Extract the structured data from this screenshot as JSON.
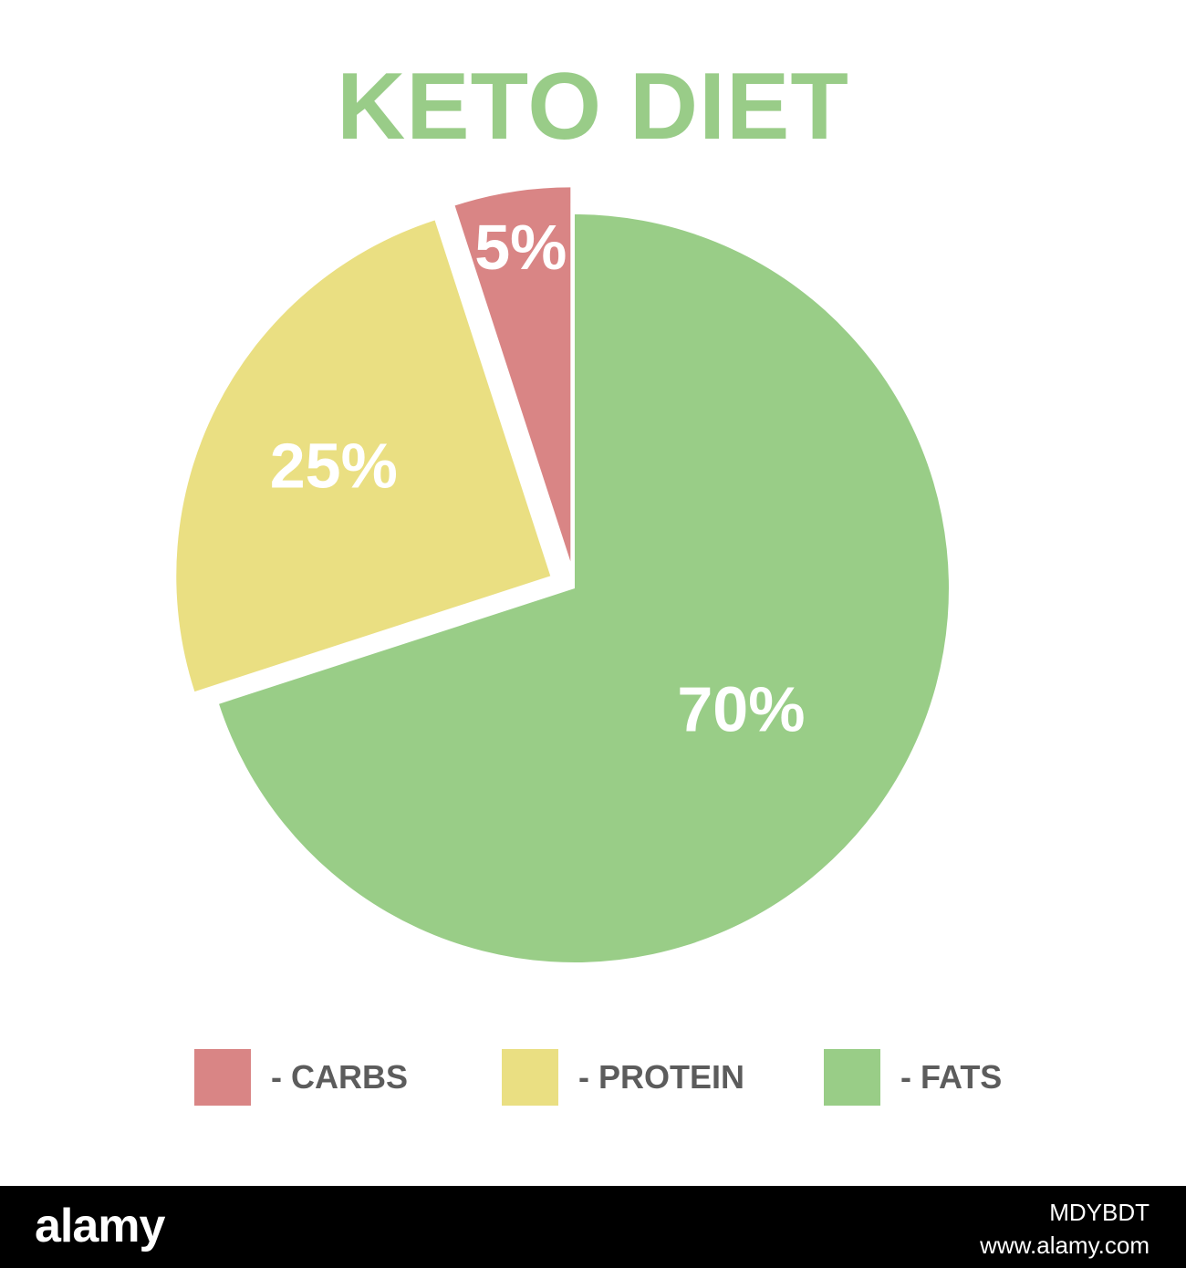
{
  "title": "KETO DIET",
  "chart_data": {
    "type": "pie",
    "categories": [
      "- CARBS",
      "- PROTEIN",
      "- FATS"
    ],
    "values": [
      5,
      25,
      70
    ],
    "labels": [
      "5%",
      "25%",
      "70%"
    ],
    "colors": [
      "#d98585",
      "#eadf82",
      "#99cd87"
    ],
    "start_angle_deg": 0,
    "direction": "clockwise",
    "exploded": [
      "carbs",
      "protein"
    ],
    "legend_placement": "bottom"
  },
  "colors": {
    "title": "#99cc88",
    "legend_text": "#5c5c5c",
    "slice_label": "#ffffff",
    "footer": "#000000"
  },
  "footer": {
    "logo": "alamy",
    "image_id": "MDYBDT",
    "url": "www.alamy.com"
  }
}
